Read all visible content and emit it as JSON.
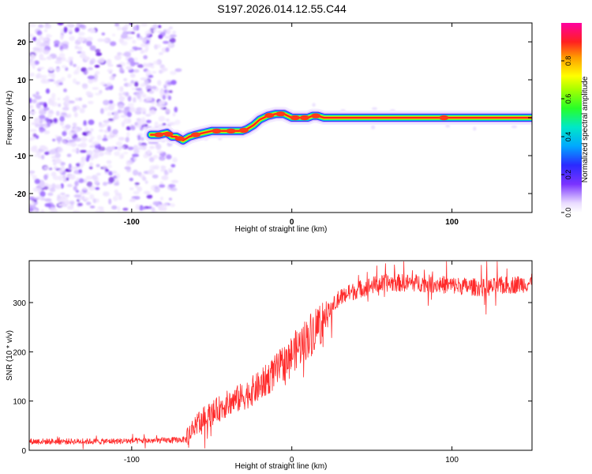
{
  "title": "S197.2026.014.12.55.C44",
  "colors": {
    "snr_line": "#ff2a2a",
    "scatter": "#6a1fe0",
    "track_core": "#ff2020",
    "axis": "#000000"
  },
  "chart_data": [
    {
      "type": "heatmap",
      "name": "spectrogram",
      "title": "S197.2026.014.12.55.C44",
      "xlabel": "Height of straight line (km)",
      "ylabel": "Frequency (Hz)",
      "xlim": [
        -164,
        150
      ],
      "ylim": [
        -25,
        25
      ],
      "xticks": [
        -100,
        0,
        100
      ],
      "yticks": [
        -20,
        -10,
        0,
        10,
        20
      ],
      "noise_region_km": [
        -164,
        -73
      ],
      "track": {
        "x": [
          -88,
          -83,
          -78,
          -75,
          -72,
          -68,
          -64,
          -60,
          -55,
          -50,
          -45,
          -40,
          -35,
          -31,
          -28,
          -24,
          -20,
          -15,
          -10,
          -5,
          0,
          5,
          10,
          13,
          16,
          20,
          40,
          60,
          80,
          100,
          120,
          150
        ],
        "y": [
          -4.5,
          -4.5,
          -4.0,
          -5.0,
          -5.0,
          -6.0,
          -5.0,
          -4.5,
          -4.0,
          -3.5,
          -3.5,
          -3.5,
          -3.5,
          -3.5,
          -3.0,
          -2.0,
          -0.5,
          0.5,
          1.0,
          1.0,
          0.0,
          0.0,
          0.0,
          0.5,
          0.5,
          0.0,
          0.0,
          0.0,
          0.0,
          0.0,
          0.0,
          0.0
        ]
      },
      "colorbar": {
        "label": "Normalized spectral amplitude",
        "ticks": [
          0.0,
          0.2,
          0.4,
          0.6,
          0.8
        ],
        "tick_labels": [
          "0.0",
          "0.2",
          "0.4",
          "0.6",
          "0.8"
        ],
        "range": [
          0,
          1
        ]
      }
    },
    {
      "type": "line",
      "name": "snr",
      "xlabel": "Height of straight line (km)",
      "ylabel": "SNR (10 * v/v)",
      "xlim": [
        -164,
        150
      ],
      "ylim": [
        0,
        385
      ],
      "xticks": [
        -100,
        0,
        100
      ],
      "yticks": [
        0,
        100,
        200,
        300
      ],
      "trend": {
        "x": [
          -164,
          -120,
          -80,
          -66,
          -60,
          -50,
          -40,
          -30,
          -20,
          -10,
          0,
          10,
          20,
          30,
          40,
          50,
          60,
          80,
          100,
          120,
          150
        ],
        "y": [
          18,
          18,
          20,
          22,
          55,
          75,
          95,
          110,
          130,
          160,
          195,
          230,
          270,
          310,
          325,
          335,
          340,
          340,
          335,
          330,
          340
        ]
      }
    }
  ]
}
